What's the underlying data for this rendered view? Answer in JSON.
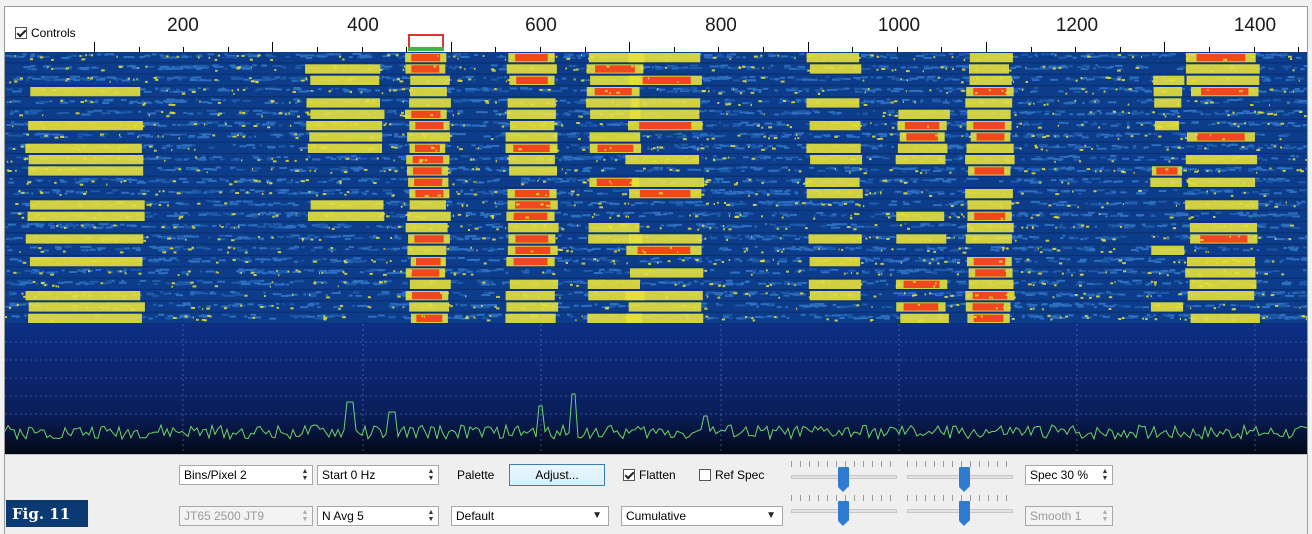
{
  "controls_toggle": {
    "label": "Controls",
    "checked": true
  },
  "ruler": {
    "labels": [
      "200",
      "400",
      "600",
      "800",
      "1000",
      "1200",
      "1400"
    ]
  },
  "colors": {
    "waterfall_bg": "#0c3c8a",
    "signal_low": "#e7e03a",
    "signal_high": "#f0471f",
    "spectrum_line": "#6fd36a",
    "rx_marker": "#d9382e",
    "tx_marker": "#44b34a"
  },
  "panel": {
    "bins_pixel": "Bins/Pixel  2",
    "start_hz": "Start 0 Hz",
    "mode_jt": "JT65  2500  JT9",
    "n_avg": "N Avg 5",
    "palette_label": "Palette",
    "adjust_button": "Adjust...",
    "palette_select": "Default",
    "flatten_label": "Flatten",
    "flatten_checked": true,
    "ref_spec_label": "Ref Spec",
    "ref_spec_checked": false,
    "spectrum_mode": "Cumulative",
    "spec_percent": "Spec 30 %",
    "smooth": "Smooth  1",
    "sliders": {
      "gain_top": 0.5,
      "zero_top": 0.55,
      "gain_bottom": 0.5,
      "zero_bottom": 0.55
    }
  },
  "figure_label": "Fig. 11"
}
